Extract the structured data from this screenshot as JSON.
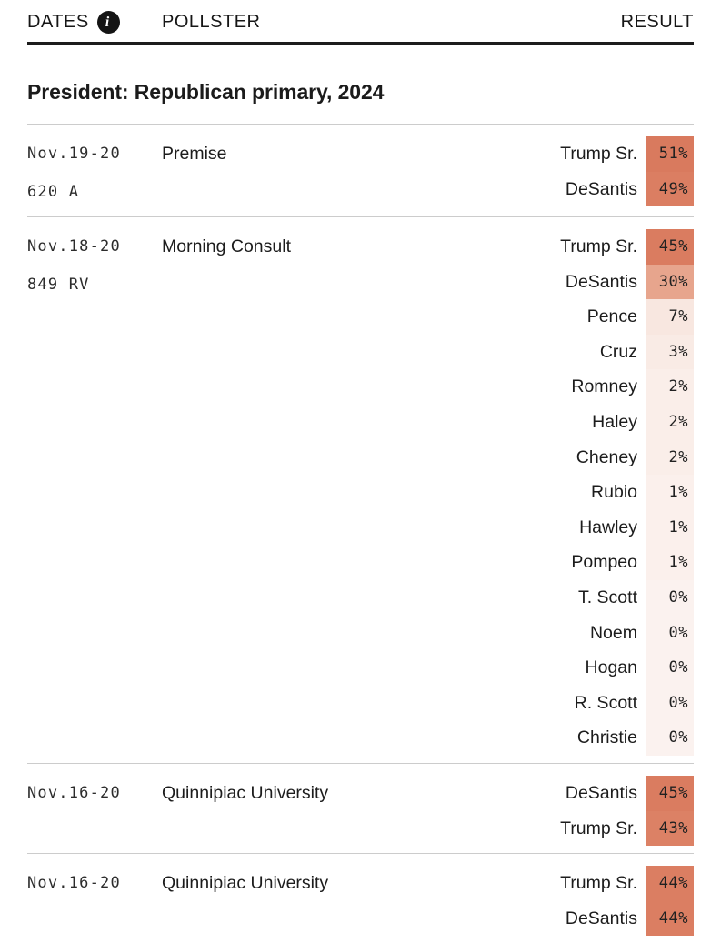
{
  "header": {
    "dates_label": "DATES",
    "info_icon": "i",
    "pollster_label": "POLLSTER",
    "result_label": "RESULT"
  },
  "section": {
    "title": "President: Republican primary, 2024"
  },
  "colors": {
    "header_border": "#1c1c1c",
    "row_separator": "#cccccc",
    "heat_max": "#d97a5e",
    "heat_min": "#fbf2ef"
  },
  "polls": [
    {
      "dates": "Nov.19-20",
      "sample": "620 A",
      "pollster": "Premise",
      "results": [
        {
          "candidate": "Trump Sr.",
          "pct": "51%",
          "color": "#d97a5e"
        },
        {
          "candidate": "DeSantis",
          "pct": "49%",
          "color": "#db7e62"
        }
      ]
    },
    {
      "dates": "Nov.18-20",
      "sample": "849 RV",
      "pollster": "Morning Consult",
      "results": [
        {
          "candidate": "Trump Sr.",
          "pct": "45%",
          "color": "#da7c60"
        },
        {
          "candidate": "DeSantis",
          "pct": "30%",
          "color": "#e7a58d"
        },
        {
          "candidate": "Pence",
          "pct": "7%",
          "color": "#f8e7e0"
        },
        {
          "candidate": "Cruz",
          "pct": "3%",
          "color": "#f9ebe5"
        },
        {
          "candidate": "Romney",
          "pct": "2%",
          "color": "#faeee9"
        },
        {
          "candidate": "Haley",
          "pct": "2%",
          "color": "#faeee9"
        },
        {
          "candidate": "Cheney",
          "pct": "2%",
          "color": "#faeee9"
        },
        {
          "candidate": "Rubio",
          "pct": "1%",
          "color": "#fbf0ec"
        },
        {
          "candidate": "Hawley",
          "pct": "1%",
          "color": "#fbf0ec"
        },
        {
          "candidate": "Pompeo",
          "pct": "1%",
          "color": "#fbf0ec"
        },
        {
          "candidate": "T. Scott",
          "pct": "0%",
          "color": "#fbf2ef"
        },
        {
          "candidate": "Noem",
          "pct": "0%",
          "color": "#fbf2ef"
        },
        {
          "candidate": "Hogan",
          "pct": "0%",
          "color": "#fbf2ef"
        },
        {
          "candidate": "R. Scott",
          "pct": "0%",
          "color": "#fbf2ef"
        },
        {
          "candidate": "Christie",
          "pct": "0%",
          "color": "#fbf2ef"
        }
      ]
    },
    {
      "dates": "Nov.16-20",
      "sample": "",
      "pollster": "Quinnipiac University",
      "results": [
        {
          "candidate": "DeSantis",
          "pct": "45%",
          "color": "#da7c60"
        },
        {
          "candidate": "Trump Sr.",
          "pct": "43%",
          "color": "#dc8165"
        }
      ]
    },
    {
      "dates": "Nov.16-20",
      "sample": "",
      "pollster": "Quinnipiac University",
      "results": [
        {
          "candidate": "Trump Sr.",
          "pct": "44%",
          "color": "#db7e62"
        },
        {
          "candidate": "DeSantis",
          "pct": "44%",
          "color": "#db7e62"
        }
      ]
    }
  ]
}
